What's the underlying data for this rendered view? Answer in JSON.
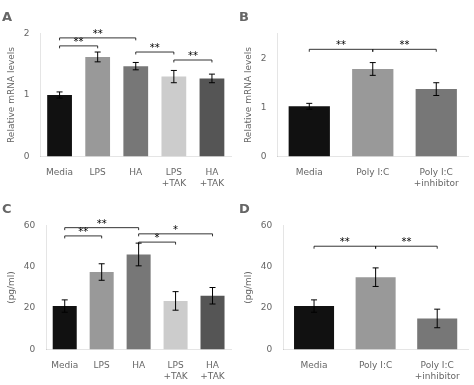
{
  "chart_data": [
    {
      "type": "bar",
      "title": "A",
      "ylabel": "Relative mRNA levels",
      "categories": [
        "Media",
        "LPS",
        "HA",
        "LPS\n+TAK",
        "HA\n+TAK"
      ],
      "values": [
        1.0,
        1.62,
        1.47,
        1.3,
        1.27
      ],
      "errors": [
        0.05,
        0.08,
        0.06,
        0.1,
        0.07
      ],
      "colors": [
        "#111111",
        "#999999",
        "#777777",
        "#cccccc",
        "#555555"
      ],
      "ylim": [
        0,
        2.0
      ],
      "yticks": [
        0,
        1,
        2
      ],
      "grid": false,
      "annotations": [
        {
          "from": "Media",
          "to": "LPS",
          "y": 1.8,
          "text": "**"
        },
        {
          "from": "Media",
          "to": "HA",
          "y": 1.93,
          "text": "**"
        },
        {
          "from": "HA",
          "to": "LPS\n+TAK",
          "y": 1.7,
          "text": "**"
        },
        {
          "from": "LPS\n+TAK",
          "to": "HA\n+TAK",
          "y": 1.57,
          "text": "**"
        }
      ]
    },
    {
      "type": "bar",
      "title": "B",
      "ylabel": "Relative mRNA levels",
      "categories": [
        "Media",
        "Poly I:C",
        "Poly I:C\n+inhibitor"
      ],
      "values": [
        1.02,
        1.78,
        1.37
      ],
      "errors": [
        0.06,
        0.13,
        0.13
      ],
      "colors": [
        "#111111",
        "#999999",
        "#777777"
      ],
      "ylim": [
        0,
        2.5
      ],
      "yticks": [
        0,
        1,
        2
      ],
      "grid": false,
      "annotations": [
        {
          "from": "Media",
          "to": "Poly I:C",
          "y": 2.18,
          "text": "**"
        },
        {
          "from": "Poly I:C",
          "to": "Poly I:C\n+inhibitor",
          "y": 2.18,
          "text": "**"
        }
      ]
    },
    {
      "type": "bar",
      "title": "C",
      "ylabel": "(pg/ml)",
      "categories": [
        "Media",
        "LPS",
        "HA",
        "LPS\n+TAK",
        "HA\n+TAK"
      ],
      "values": [
        21.0,
        37.5,
        46.0,
        23.5,
        26.0
      ],
      "errors": [
        3.0,
        4.0,
        5.5,
        4.5,
        4.0
      ],
      "colors": [
        "#111111",
        "#999999",
        "#777777",
        "#cccccc",
        "#555555"
      ],
      "ylim": [
        0,
        60
      ],
      "yticks": [
        0,
        20,
        40,
        60
      ],
      "grid": false,
      "annotations": [
        {
          "from": "Media",
          "to": "LPS",
          "y": 55,
          "text": "**"
        },
        {
          "from": "Media",
          "to": "HA",
          "y": 59,
          "text": "**"
        },
        {
          "from": "HA",
          "to": "LPS\n+TAK",
          "y": 52,
          "text": "*"
        },
        {
          "from": "HA",
          "to": "HA\n+TAK",
          "y": 56,
          "text": "*"
        }
      ]
    },
    {
      "type": "bar",
      "title": "D",
      "ylabel": "(pg/ml)",
      "categories": [
        "Media",
        "Poly I:C",
        "Poly I:C\n+inhibitor"
      ],
      "values": [
        21.0,
        35.0,
        15.0
      ],
      "errors": [
        3.0,
        4.5,
        4.5
      ],
      "colors": [
        "#111111",
        "#999999",
        "#777777"
      ],
      "ylim": [
        0,
        60
      ],
      "yticks": [
        0,
        20,
        40,
        60
      ],
      "grid": false,
      "annotations": [
        {
          "from": "Media",
          "to": "Poly I:C",
          "y": 50,
          "text": "**"
        },
        {
          "from": "Poly I:C",
          "to": "Poly I:C\n+inhibitor",
          "y": 50,
          "text": "**"
        }
      ]
    }
  ]
}
